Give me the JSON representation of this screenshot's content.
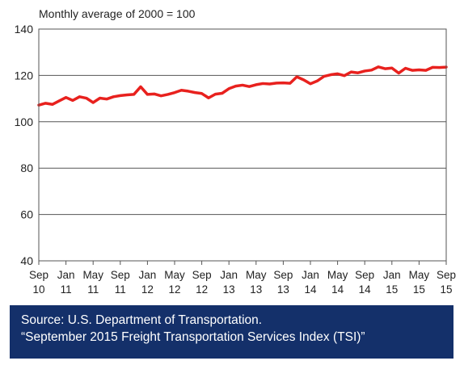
{
  "chart_data": {
    "type": "line",
    "ylabel": "Monthly average of 2000 = 100",
    "ylim": [
      40,
      140
    ],
    "yticks": [
      "140",
      "120",
      "100",
      "80",
      "60",
      "40"
    ],
    "xtick_labels": [
      {
        "month": "Sep",
        "year": "10"
      },
      {
        "month": "Jan",
        "year": "11"
      },
      {
        "month": "May",
        "year": "11"
      },
      {
        "month": "Sep",
        "year": "11"
      },
      {
        "month": "Jan",
        "year": "12"
      },
      {
        "month": "May",
        "year": "12"
      },
      {
        "month": "Sep",
        "year": "12"
      },
      {
        "month": "Jan",
        "year": "13"
      },
      {
        "month": "May",
        "year": "13"
      },
      {
        "month": "Sep",
        "year": "13"
      },
      {
        "month": "Jan",
        "year": "14"
      },
      {
        "month": "May",
        "year": "14"
      },
      {
        "month": "Sep",
        "year": "14"
      },
      {
        "month": "Jan",
        "year": "15"
      },
      {
        "month": "May",
        "year": "15"
      },
      {
        "month": "Sep",
        "year": "15"
      }
    ],
    "grid": true,
    "line_color": "#e8211e",
    "series": [
      {
        "x": [
          "Sep 2010",
          "Oct 2010",
          "Nov 2010",
          "Dec 2010",
          "Jan 2011",
          "Feb 2011",
          "Mar 2011",
          "Apr 2011",
          "May 2011",
          "Jun 2011",
          "Jul 2011",
          "Aug 2011",
          "Sep 2011",
          "Oct 2011",
          "Nov 2011",
          "Dec 2011",
          "Jan 2012",
          "Feb 2012",
          "Mar 2012",
          "Apr 2012",
          "May 2012",
          "Jun 2012",
          "Jul 2012",
          "Aug 2012",
          "Sep 2012",
          "Oct 2012",
          "Nov 2012",
          "Dec 2012",
          "Jan 2013",
          "Feb 2013",
          "Mar 2013",
          "Apr 2013",
          "May 2013",
          "Jun 2013",
          "Jul 2013",
          "Aug 2013",
          "Sep 2013",
          "Oct 2013",
          "Nov 2013",
          "Dec 2013",
          "Jan 2014",
          "Feb 2014",
          "Mar 2014",
          "Apr 2014",
          "May 2014",
          "Jun 2014",
          "Jul 2014",
          "Aug 2014",
          "Sep 2014",
          "Oct 2014",
          "Nov 2014",
          "Dec 2014",
          "Jan 2015",
          "Feb 2015",
          "Mar 2015",
          "Apr 2015",
          "May 2015",
          "Jun 2015",
          "Jul 2015",
          "Aug 2015",
          "Sep 2015"
        ],
        "values": [
          107.2,
          108.0,
          107.5,
          109.0,
          110.5,
          109.2,
          110.8,
          110.2,
          108.3,
          110.2,
          109.8,
          110.8,
          111.3,
          111.6,
          111.8,
          115.1,
          111.8,
          112.0,
          111.2,
          111.8,
          112.6,
          113.6,
          113.2,
          112.6,
          112.2,
          110.3,
          111.9,
          112.3,
          114.3,
          115.4,
          115.8,
          115.2,
          116.0,
          116.5,
          116.3,
          116.7,
          116.8,
          116.6,
          119.4,
          118.1,
          116.4,
          117.6,
          119.6,
          120.3,
          120.7,
          119.9,
          121.5,
          121.1,
          121.9,
          122.3,
          123.7,
          122.9,
          123.2,
          121.0,
          123.1,
          122.2,
          122.4,
          122.2,
          123.5,
          123.4,
          123.6
        ]
      }
    ]
  },
  "source": {
    "line1": "Source: U.S. Department of Transportation.",
    "line2": "“September 2015 Freight Transportation Services Index (TSI)”",
    "background": "#14306a"
  }
}
